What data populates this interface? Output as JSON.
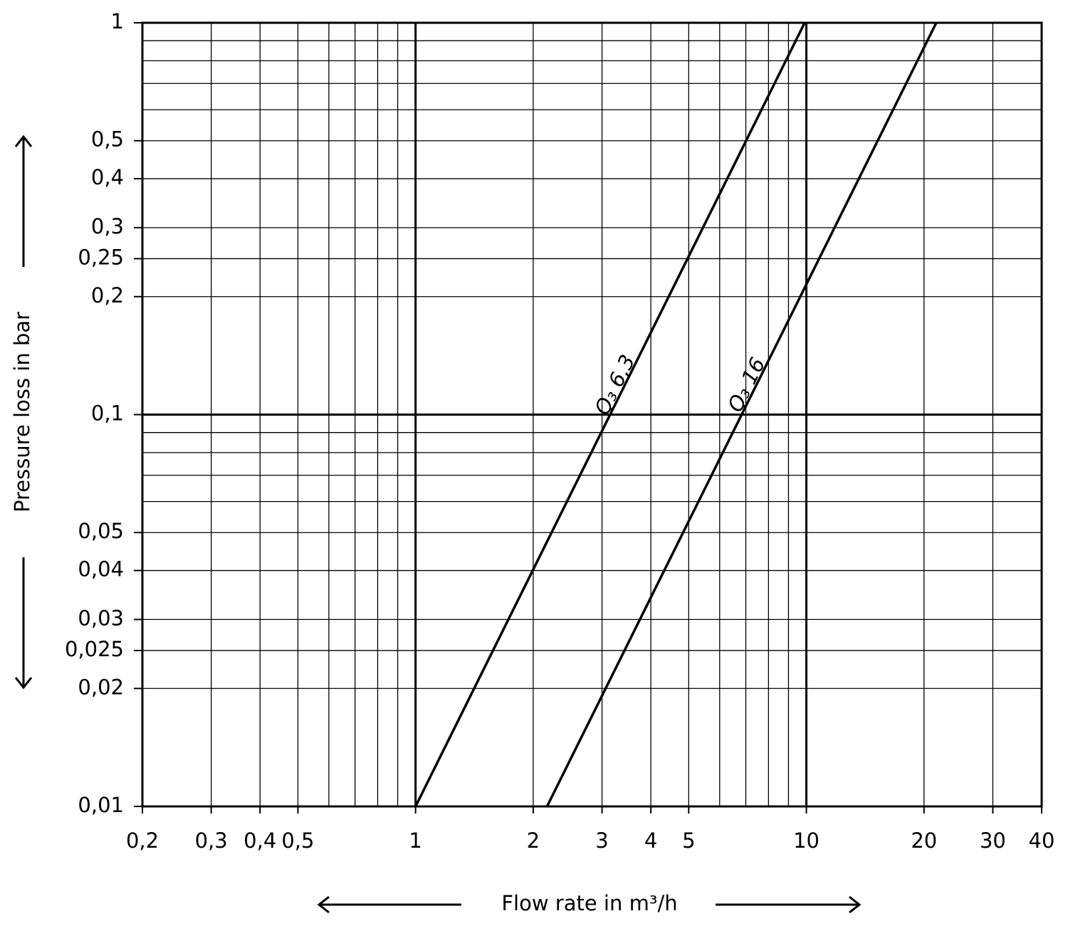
{
  "chart_data": {
    "type": "line",
    "x_label": "Flow rate in m³/h",
    "y_label": "Pressure loss in bar",
    "log_x": true,
    "log_y": true,
    "grid": true,
    "xlim": [
      0.2,
      40
    ],
    "ylim": [
      0.01,
      1
    ],
    "xticks": [
      {
        "value": 0.2,
        "label": "0,2"
      },
      {
        "value": 0.3,
        "label": "0,3"
      },
      {
        "value": 0.4,
        "label": "0,4"
      },
      {
        "value": 0.5,
        "label": "0,5"
      },
      1,
      2,
      3,
      4,
      5,
      10,
      20,
      30,
      40
    ],
    "xminor": [
      0.6,
      0.7,
      0.8,
      0.9,
      6,
      7,
      8,
      9
    ],
    "yticks": [
      {
        "value": 0.01,
        "label": "0,01"
      },
      {
        "value": 0.02,
        "label": "0,02"
      },
      {
        "value": 0.025,
        "label": "0,025"
      },
      {
        "value": 0.03,
        "label": "0,03"
      },
      {
        "value": 0.04,
        "label": "0,04"
      },
      {
        "value": 0.05,
        "label": "0,05"
      },
      {
        "value": 0.1,
        "label": "0,1"
      },
      {
        "value": 0.2,
        "label": "0,2"
      },
      {
        "value": 0.25,
        "label": "0,25"
      },
      {
        "value": 0.3,
        "label": "0,3"
      },
      {
        "value": 0.4,
        "label": "0,4"
      },
      {
        "value": 0.5,
        "label": "0,5"
      },
      1
    ],
    "yminor": [
      0.06,
      0.07,
      0.08,
      0.09,
      0.6,
      0.7,
      0.8,
      0.9
    ],
    "series": [
      {
        "name": "Q₃ 6,3",
        "color": "#000000",
        "x": [
          1,
          9.9
        ],
        "values": [
          0.01,
          1
        ]
      },
      {
        "name": "Q₃ 16",
        "color": "#000000",
        "x": [
          2.17,
          21.5
        ],
        "values": [
          0.01,
          1
        ]
      }
    ]
  }
}
